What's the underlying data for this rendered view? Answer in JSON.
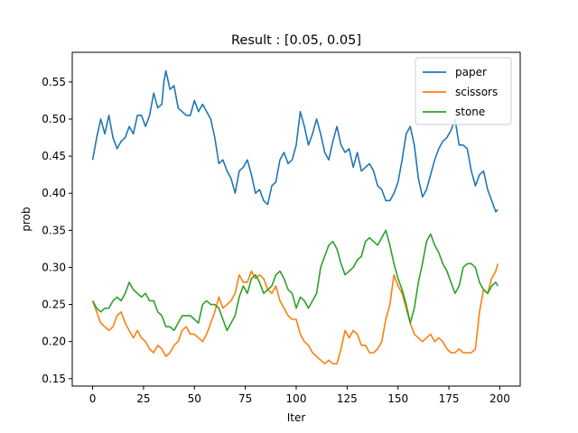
{
  "chart_data": {
    "type": "line",
    "title": "Result : [0.05, 0.05]",
    "xlabel": "Iter",
    "ylabel": "prob",
    "xlim": [
      -10,
      210
    ],
    "ylim": [
      0.14,
      0.59
    ],
    "xticks": [
      0,
      25,
      50,
      75,
      100,
      125,
      150,
      175,
      200
    ],
    "yticks": [
      0.15,
      0.2,
      0.25,
      0.3,
      0.35,
      0.4,
      0.45,
      0.5,
      0.55
    ],
    "ytick_labels": [
      "0.15",
      "0.20",
      "0.25",
      "0.30",
      "0.35",
      "0.40",
      "0.45",
      "0.50",
      "0.55"
    ],
    "grid": false,
    "legend_position": "top-right",
    "series": [
      {
        "name": "paper",
        "color": "#1f77b4",
        "x": [
          0,
          2,
          4,
          6,
          8,
          10,
          12,
          14,
          16,
          18,
          20,
          22,
          24,
          26,
          28,
          30,
          32,
          34,
          35,
          36,
          38,
          40,
          42,
          44,
          46,
          48,
          50,
          52,
          54,
          56,
          58,
          60,
          62,
          64,
          66,
          68,
          70,
          72,
          74,
          76,
          78,
          80,
          82,
          84,
          86,
          88,
          90,
          92,
          94,
          96,
          98,
          100,
          102,
          104,
          106,
          108,
          110,
          112,
          114,
          116,
          118,
          120,
          122,
          124,
          126,
          128,
          130,
          132,
          134,
          136,
          138,
          140,
          142,
          144,
          146,
          148,
          150,
          152,
          154,
          156,
          158,
          160,
          162,
          164,
          166,
          168,
          170,
          172,
          174,
          176,
          178,
          180,
          182,
          184,
          186,
          188,
          190,
          192,
          194,
          196,
          198,
          199
        ],
        "y": [
          0.445,
          0.475,
          0.5,
          0.48,
          0.505,
          0.475,
          0.46,
          0.47,
          0.475,
          0.49,
          0.48,
          0.505,
          0.505,
          0.49,
          0.505,
          0.535,
          0.515,
          0.52,
          0.55,
          0.565,
          0.54,
          0.545,
          0.515,
          0.51,
          0.505,
          0.505,
          0.525,
          0.51,
          0.52,
          0.51,
          0.5,
          0.475,
          0.44,
          0.445,
          0.43,
          0.42,
          0.4,
          0.43,
          0.435,
          0.445,
          0.425,
          0.4,
          0.405,
          0.39,
          0.385,
          0.41,
          0.415,
          0.445,
          0.455,
          0.44,
          0.445,
          0.465,
          0.51,
          0.49,
          0.465,
          0.48,
          0.5,
          0.48,
          0.455,
          0.445,
          0.47,
          0.49,
          0.465,
          0.455,
          0.46,
          0.435,
          0.455,
          0.43,
          0.435,
          0.44,
          0.43,
          0.41,
          0.405,
          0.39,
          0.39,
          0.4,
          0.415,
          0.445,
          0.48,
          0.49,
          0.465,
          0.42,
          0.395,
          0.405,
          0.425,
          0.445,
          0.46,
          0.47,
          0.475,
          0.485,
          0.5,
          0.465,
          0.465,
          0.46,
          0.43,
          0.41,
          0.425,
          0.43,
          0.405,
          0.39,
          0.375,
          0.378
        ]
      },
      {
        "name": "scissors",
        "color": "#ff7f0e",
        "x": [
          0,
          2,
          4,
          6,
          8,
          10,
          12,
          14,
          16,
          18,
          20,
          22,
          24,
          26,
          28,
          30,
          32,
          34,
          36,
          38,
          40,
          42,
          44,
          46,
          48,
          50,
          52,
          54,
          56,
          58,
          60,
          62,
          64,
          66,
          68,
          70,
          72,
          74,
          76,
          78,
          80,
          82,
          84,
          86,
          88,
          90,
          92,
          94,
          96,
          98,
          100,
          102,
          104,
          106,
          108,
          110,
          112,
          114,
          116,
          118,
          120,
          122,
          124,
          126,
          128,
          130,
          132,
          134,
          136,
          138,
          140,
          142,
          144,
          146,
          148,
          150,
          152,
          154,
          156,
          158,
          160,
          162,
          164,
          166,
          168,
          170,
          172,
          174,
          176,
          178,
          180,
          182,
          184,
          186,
          188,
          190,
          192,
          194,
          196,
          198,
          199
        ],
        "y": [
          0.255,
          0.24,
          0.225,
          0.22,
          0.215,
          0.22,
          0.235,
          0.24,
          0.225,
          0.215,
          0.205,
          0.215,
          0.205,
          0.2,
          0.19,
          0.185,
          0.195,
          0.19,
          0.18,
          0.185,
          0.195,
          0.2,
          0.215,
          0.22,
          0.21,
          0.21,
          0.205,
          0.2,
          0.21,
          0.225,
          0.24,
          0.26,
          0.245,
          0.25,
          0.255,
          0.265,
          0.29,
          0.28,
          0.28,
          0.295,
          0.285,
          0.29,
          0.285,
          0.27,
          0.265,
          0.275,
          0.255,
          0.245,
          0.235,
          0.23,
          0.23,
          0.21,
          0.2,
          0.195,
          0.185,
          0.18,
          0.175,
          0.17,
          0.175,
          0.17,
          0.17,
          0.19,
          0.215,
          0.205,
          0.215,
          0.21,
          0.195,
          0.195,
          0.185,
          0.185,
          0.19,
          0.2,
          0.23,
          0.25,
          0.29,
          0.275,
          0.265,
          0.245,
          0.225,
          0.21,
          0.205,
          0.2,
          0.205,
          0.21,
          0.2,
          0.205,
          0.2,
          0.19,
          0.185,
          0.185,
          0.19,
          0.185,
          0.185,
          0.185,
          0.19,
          0.24,
          0.27,
          0.265,
          0.285,
          0.295,
          0.305
        ]
      },
      {
        "name": "stone",
        "color": "#2ca02c",
        "x": [
          0,
          2,
          4,
          6,
          8,
          10,
          12,
          14,
          16,
          18,
          20,
          22,
          24,
          26,
          28,
          30,
          32,
          34,
          36,
          38,
          40,
          42,
          44,
          46,
          48,
          50,
          52,
          54,
          56,
          58,
          60,
          62,
          64,
          66,
          68,
          70,
          72,
          74,
          76,
          78,
          80,
          82,
          84,
          86,
          88,
          90,
          92,
          94,
          96,
          98,
          100,
          102,
          104,
          106,
          108,
          110,
          112,
          114,
          116,
          118,
          120,
          122,
          124,
          126,
          128,
          130,
          132,
          134,
          136,
          138,
          140,
          142,
          144,
          146,
          148,
          150,
          152,
          154,
          156,
          158,
          160,
          162,
          164,
          166,
          168,
          170,
          172,
          174,
          176,
          178,
          180,
          182,
          184,
          186,
          188,
          190,
          192,
          194,
          196,
          198,
          199
        ],
        "y": [
          0.255,
          0.245,
          0.24,
          0.245,
          0.245,
          0.255,
          0.26,
          0.255,
          0.265,
          0.28,
          0.27,
          0.265,
          0.26,
          0.265,
          0.255,
          0.255,
          0.24,
          0.235,
          0.22,
          0.22,
          0.215,
          0.225,
          0.235,
          0.235,
          0.235,
          0.23,
          0.225,
          0.25,
          0.255,
          0.25,
          0.25,
          0.245,
          0.23,
          0.215,
          0.225,
          0.235,
          0.26,
          0.275,
          0.265,
          0.285,
          0.29,
          0.28,
          0.265,
          0.27,
          0.275,
          0.29,
          0.295,
          0.285,
          0.27,
          0.265,
          0.245,
          0.26,
          0.255,
          0.245,
          0.255,
          0.265,
          0.3,
          0.315,
          0.33,
          0.335,
          0.325,
          0.305,
          0.29,
          0.295,
          0.3,
          0.31,
          0.315,
          0.335,
          0.34,
          0.335,
          0.33,
          0.34,
          0.35,
          0.33,
          0.305,
          0.285,
          0.27,
          0.25,
          0.225,
          0.245,
          0.28,
          0.305,
          0.335,
          0.345,
          0.33,
          0.32,
          0.305,
          0.295,
          0.28,
          0.265,
          0.275,
          0.3,
          0.305,
          0.305,
          0.3,
          0.28,
          0.27,
          0.265,
          0.275,
          0.28,
          0.275
        ]
      }
    ]
  }
}
